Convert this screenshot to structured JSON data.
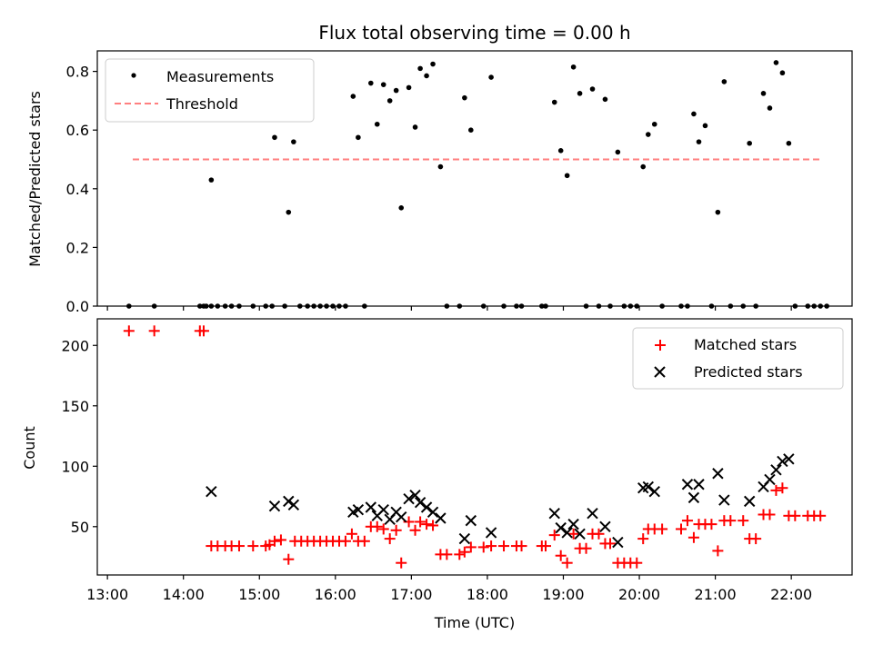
{
  "chart_data": [
    {
      "type": "scatter",
      "title": "Flux total observing time = 0.00 h",
      "ylabel": "Matched/Predicted stars",
      "xlabel": "",
      "ylim": [
        0,
        0.87
      ],
      "yticks": [
        0.0,
        0.2,
        0.4,
        0.6,
        0.8
      ],
      "ytick_labels": [
        "0.0",
        "0.2",
        "0.4",
        "0.6",
        "0.8"
      ],
      "legend_position": "upper-left",
      "colors": {
        "measurements": "#000000",
        "threshold": "#ff7f7f"
      },
      "series": [
        {
          "name": "Measurements",
          "marker": "dot",
          "points": [
            [
              "13:17",
              0
            ],
            [
              "13:37",
              0
            ],
            [
              "14:13",
              0
            ],
            [
              "14:16",
              0
            ],
            [
              "14:18",
              0
            ],
            [
              "14:22",
              0
            ],
            [
              "14:27",
              0
            ],
            [
              "14:33",
              0
            ],
            [
              "14:38",
              0
            ],
            [
              "14:44",
              0
            ],
            [
              "14:22",
              0.43
            ],
            [
              "14:55",
              0
            ],
            [
              "15:05",
              0
            ],
            [
              "15:10",
              0
            ],
            [
              "15:12",
              0.575
            ],
            [
              "15:20",
              0
            ],
            [
              "15:23",
              0.32
            ],
            [
              "15:27",
              0.56
            ],
            [
              "15:32",
              0
            ],
            [
              "15:38",
              0
            ],
            [
              "15:43",
              0
            ],
            [
              "15:48",
              0
            ],
            [
              "15:53",
              0
            ],
            [
              "15:58",
              0
            ],
            [
              "16:03",
              0
            ],
            [
              "16:08",
              0
            ],
            [
              "16:14",
              0.715
            ],
            [
              "16:18",
              0.575
            ],
            [
              "16:23",
              0
            ],
            [
              "16:28",
              0.76
            ],
            [
              "16:33",
              0.62
            ],
            [
              "16:38",
              0.755
            ],
            [
              "16:43",
              0.7
            ],
            [
              "16:48",
              0.735
            ],
            [
              "16:52",
              0.335
            ],
            [
              "16:58",
              0.745
            ],
            [
              "17:03",
              0.61
            ],
            [
              "17:07",
              0.81
            ],
            [
              "17:12",
              0.785
            ],
            [
              "17:17",
              0.825
            ],
            [
              "17:23",
              0.475
            ],
            [
              "17:28",
              0
            ],
            [
              "17:38",
              0
            ],
            [
              "17:42",
              0.71
            ],
            [
              "17:47",
              0.6
            ],
            [
              "17:57",
              0
            ],
            [
              "18:03",
              0.78
            ],
            [
              "18:13",
              0
            ],
            [
              "18:23",
              0
            ],
            [
              "18:27",
              0
            ],
            [
              "18:43",
              0
            ],
            [
              "18:46",
              0
            ],
            [
              "18:53",
              0.695
            ],
            [
              "18:58",
              0.53
            ],
            [
              "19:03",
              0.445
            ],
            [
              "19:08",
              0.815
            ],
            [
              "19:13",
              0.725
            ],
            [
              "19:18",
              0
            ],
            [
              "19:23",
              0.74
            ],
            [
              "19:28",
              0
            ],
            [
              "19:33",
              0.705
            ],
            [
              "19:37",
              0
            ],
            [
              "19:43",
              0.525
            ],
            [
              "19:48",
              0
            ],
            [
              "19:53",
              0
            ],
            [
              "19:58",
              0
            ],
            [
              "20:03",
              0.475
            ],
            [
              "20:07",
              0.585
            ],
            [
              "20:12",
              0.62
            ],
            [
              "20:18",
              0
            ],
            [
              "20:33",
              0
            ],
            [
              "20:38",
              0
            ],
            [
              "20:43",
              0.655
            ],
            [
              "20:47",
              0.56
            ],
            [
              "20:52",
              0.615
            ],
            [
              "20:57",
              0
            ],
            [
              "21:02",
              0.32
            ],
            [
              "21:07",
              0.765
            ],
            [
              "21:12",
              0
            ],
            [
              "21:22",
              0
            ],
            [
              "21:27",
              0.555
            ],
            [
              "21:32",
              0
            ],
            [
              "21:38",
              0.725
            ],
            [
              "21:43",
              0.675
            ],
            [
              "21:48",
              0.83
            ],
            [
              "21:53",
              0.795
            ],
            [
              "21:58",
              0.555
            ],
            [
              "22:03",
              0
            ],
            [
              "22:13",
              0
            ],
            [
              "22:18",
              0
            ],
            [
              "22:23",
              0
            ],
            [
              "22:28",
              0
            ]
          ]
        },
        {
          "name": "Threshold",
          "line": "dashed",
          "points": [
            [
              "13:20",
              0.5
            ],
            [
              "22:23",
              0.5
            ]
          ]
        }
      ]
    },
    {
      "type": "scatter",
      "title": "",
      "ylabel": "Count",
      "xlabel": "Time (UTC)",
      "ylim": [
        10,
        222
      ],
      "yticks": [
        50,
        100,
        150,
        200
      ],
      "ytick_labels": [
        "50",
        "100",
        "150",
        "200"
      ],
      "xlim": [
        "12:52",
        "22:48"
      ],
      "xticks": [
        "13:00",
        "14:00",
        "15:00",
        "16:00",
        "17:00",
        "18:00",
        "19:00",
        "20:00",
        "21:00",
        "22:00"
      ],
      "xtick_labels": [
        "13:00",
        "14:00",
        "15:00",
        "16:00",
        "17:00",
        "18:00",
        "19:00",
        "20:00",
        "21:00",
        "22:00"
      ],
      "legend_position": "upper-right",
      "colors": {
        "matched": "#ff0000",
        "predicted": "#000000"
      },
      "series": [
        {
          "name": "Matched stars",
          "marker": "plus",
          "points": [
            [
              "13:17",
              212
            ],
            [
              "13:37",
              212
            ],
            [
              "14:13",
              212
            ],
            [
              "14:16",
              212
            ],
            [
              "14:22",
              34
            ],
            [
              "14:27",
              34
            ],
            [
              "14:33",
              34
            ],
            [
              "14:38",
              34
            ],
            [
              "14:44",
              34
            ],
            [
              "14:55",
              34
            ],
            [
              "15:05",
              34
            ],
            [
              "15:08",
              35
            ],
            [
              "15:12",
              38
            ],
            [
              "15:17",
              39
            ],
            [
              "15:23",
              23
            ],
            [
              "15:28",
              38
            ],
            [
              "15:33",
              38
            ],
            [
              "15:38",
              38
            ],
            [
              "15:43",
              38
            ],
            [
              "15:48",
              38
            ],
            [
              "15:53",
              38
            ],
            [
              "15:58",
              38
            ],
            [
              "16:03",
              38
            ],
            [
              "16:08",
              38
            ],
            [
              "16:13",
              44
            ],
            [
              "16:18",
              38
            ],
            [
              "16:23",
              38
            ],
            [
              "16:28",
              50
            ],
            [
              "16:33",
              50
            ],
            [
              "16:38",
              48
            ],
            [
              "16:43",
              40
            ],
            [
              "16:48",
              47
            ],
            [
              "16:52",
              20
            ],
            [
              "16:58",
              54
            ],
            [
              "17:03",
              47
            ],
            [
              "17:07",
              54
            ],
            [
              "17:12",
              52
            ],
            [
              "17:17",
              51
            ],
            [
              "17:23",
              27
            ],
            [
              "17:28",
              27
            ],
            [
              "17:38",
              27
            ],
            [
              "17:42",
              29
            ],
            [
              "17:47",
              33
            ],
            [
              "17:57",
              33
            ],
            [
              "18:03",
              34
            ],
            [
              "18:13",
              34
            ],
            [
              "18:23",
              34
            ],
            [
              "18:27",
              34
            ],
            [
              "18:43",
              34
            ],
            [
              "18:46",
              34
            ],
            [
              "18:53",
              43
            ],
            [
              "18:58",
              26
            ],
            [
              "19:03",
              20
            ],
            [
              "19:08",
              44
            ],
            [
              "19:13",
              32
            ],
            [
              "19:18",
              32
            ],
            [
              "19:23",
              44
            ],
            [
              "19:28",
              44
            ],
            [
              "19:33",
              36
            ],
            [
              "19:37",
              36
            ],
            [
              "19:43",
              20
            ],
            [
              "19:48",
              20
            ],
            [
              "19:53",
              20
            ],
            [
              "19:58",
              20
            ],
            [
              "20:03",
              40
            ],
            [
              "20:07",
              48
            ],
            [
              "20:12",
              48
            ],
            [
              "20:18",
              48
            ],
            [
              "20:33",
              48
            ],
            [
              "20:38",
              55
            ],
            [
              "20:43",
              41
            ],
            [
              "20:47",
              52
            ],
            [
              "20:52",
              52
            ],
            [
              "20:57",
              52
            ],
            [
              "21:02",
              30
            ],
            [
              "21:07",
              55
            ],
            [
              "21:12",
              55
            ],
            [
              "21:22",
              55
            ],
            [
              "21:27",
              40
            ],
            [
              "21:32",
              40
            ],
            [
              "21:38",
              60
            ],
            [
              "21:43",
              60
            ],
            [
              "21:48",
              80
            ],
            [
              "21:53",
              82
            ],
            [
              "21:58",
              59
            ],
            [
              "22:03",
              59
            ],
            [
              "22:13",
              59
            ],
            [
              "22:18",
              59
            ],
            [
              "22:23",
              59
            ]
          ]
        },
        {
          "name": "Predicted stars",
          "marker": "x",
          "points": [
            [
              "14:22",
              79
            ],
            [
              "15:12",
              67
            ],
            [
              "15:23",
              71
            ],
            [
              "15:27",
              68
            ],
            [
              "16:14",
              62
            ],
            [
              "16:18",
              64
            ],
            [
              "16:28",
              66
            ],
            [
              "16:33",
              59
            ],
            [
              "16:38",
              64
            ],
            [
              "16:43",
              56
            ],
            [
              "16:48",
              62
            ],
            [
              "16:52",
              58
            ],
            [
              "16:58",
              73
            ],
            [
              "17:03",
              76
            ],
            [
              "17:07",
              70
            ],
            [
              "17:12",
              66
            ],
            [
              "17:17",
              62
            ],
            [
              "17:23",
              57
            ],
            [
              "17:42",
              40
            ],
            [
              "17:47",
              55
            ],
            [
              "18:03",
              45
            ],
            [
              "18:53",
              61
            ],
            [
              "18:58",
              49
            ],
            [
              "19:03",
              45
            ],
            [
              "19:08",
              52
            ],
            [
              "19:13",
              44
            ],
            [
              "19:23",
              61
            ],
            [
              "19:33",
              50
            ],
            [
              "19:43",
              37
            ],
            [
              "20:03",
              82
            ],
            [
              "20:07",
              83
            ],
            [
              "20:12",
              79
            ],
            [
              "20:38",
              85
            ],
            [
              "20:43",
              74
            ],
            [
              "20:47",
              85
            ],
            [
              "21:02",
              94
            ],
            [
              "21:07",
              72
            ],
            [
              "21:27",
              71
            ],
            [
              "21:38",
              83
            ],
            [
              "21:43",
              89
            ],
            [
              "21:48",
              97
            ],
            [
              "21:53",
              104
            ],
            [
              "21:58",
              106
            ]
          ]
        }
      ]
    }
  ]
}
